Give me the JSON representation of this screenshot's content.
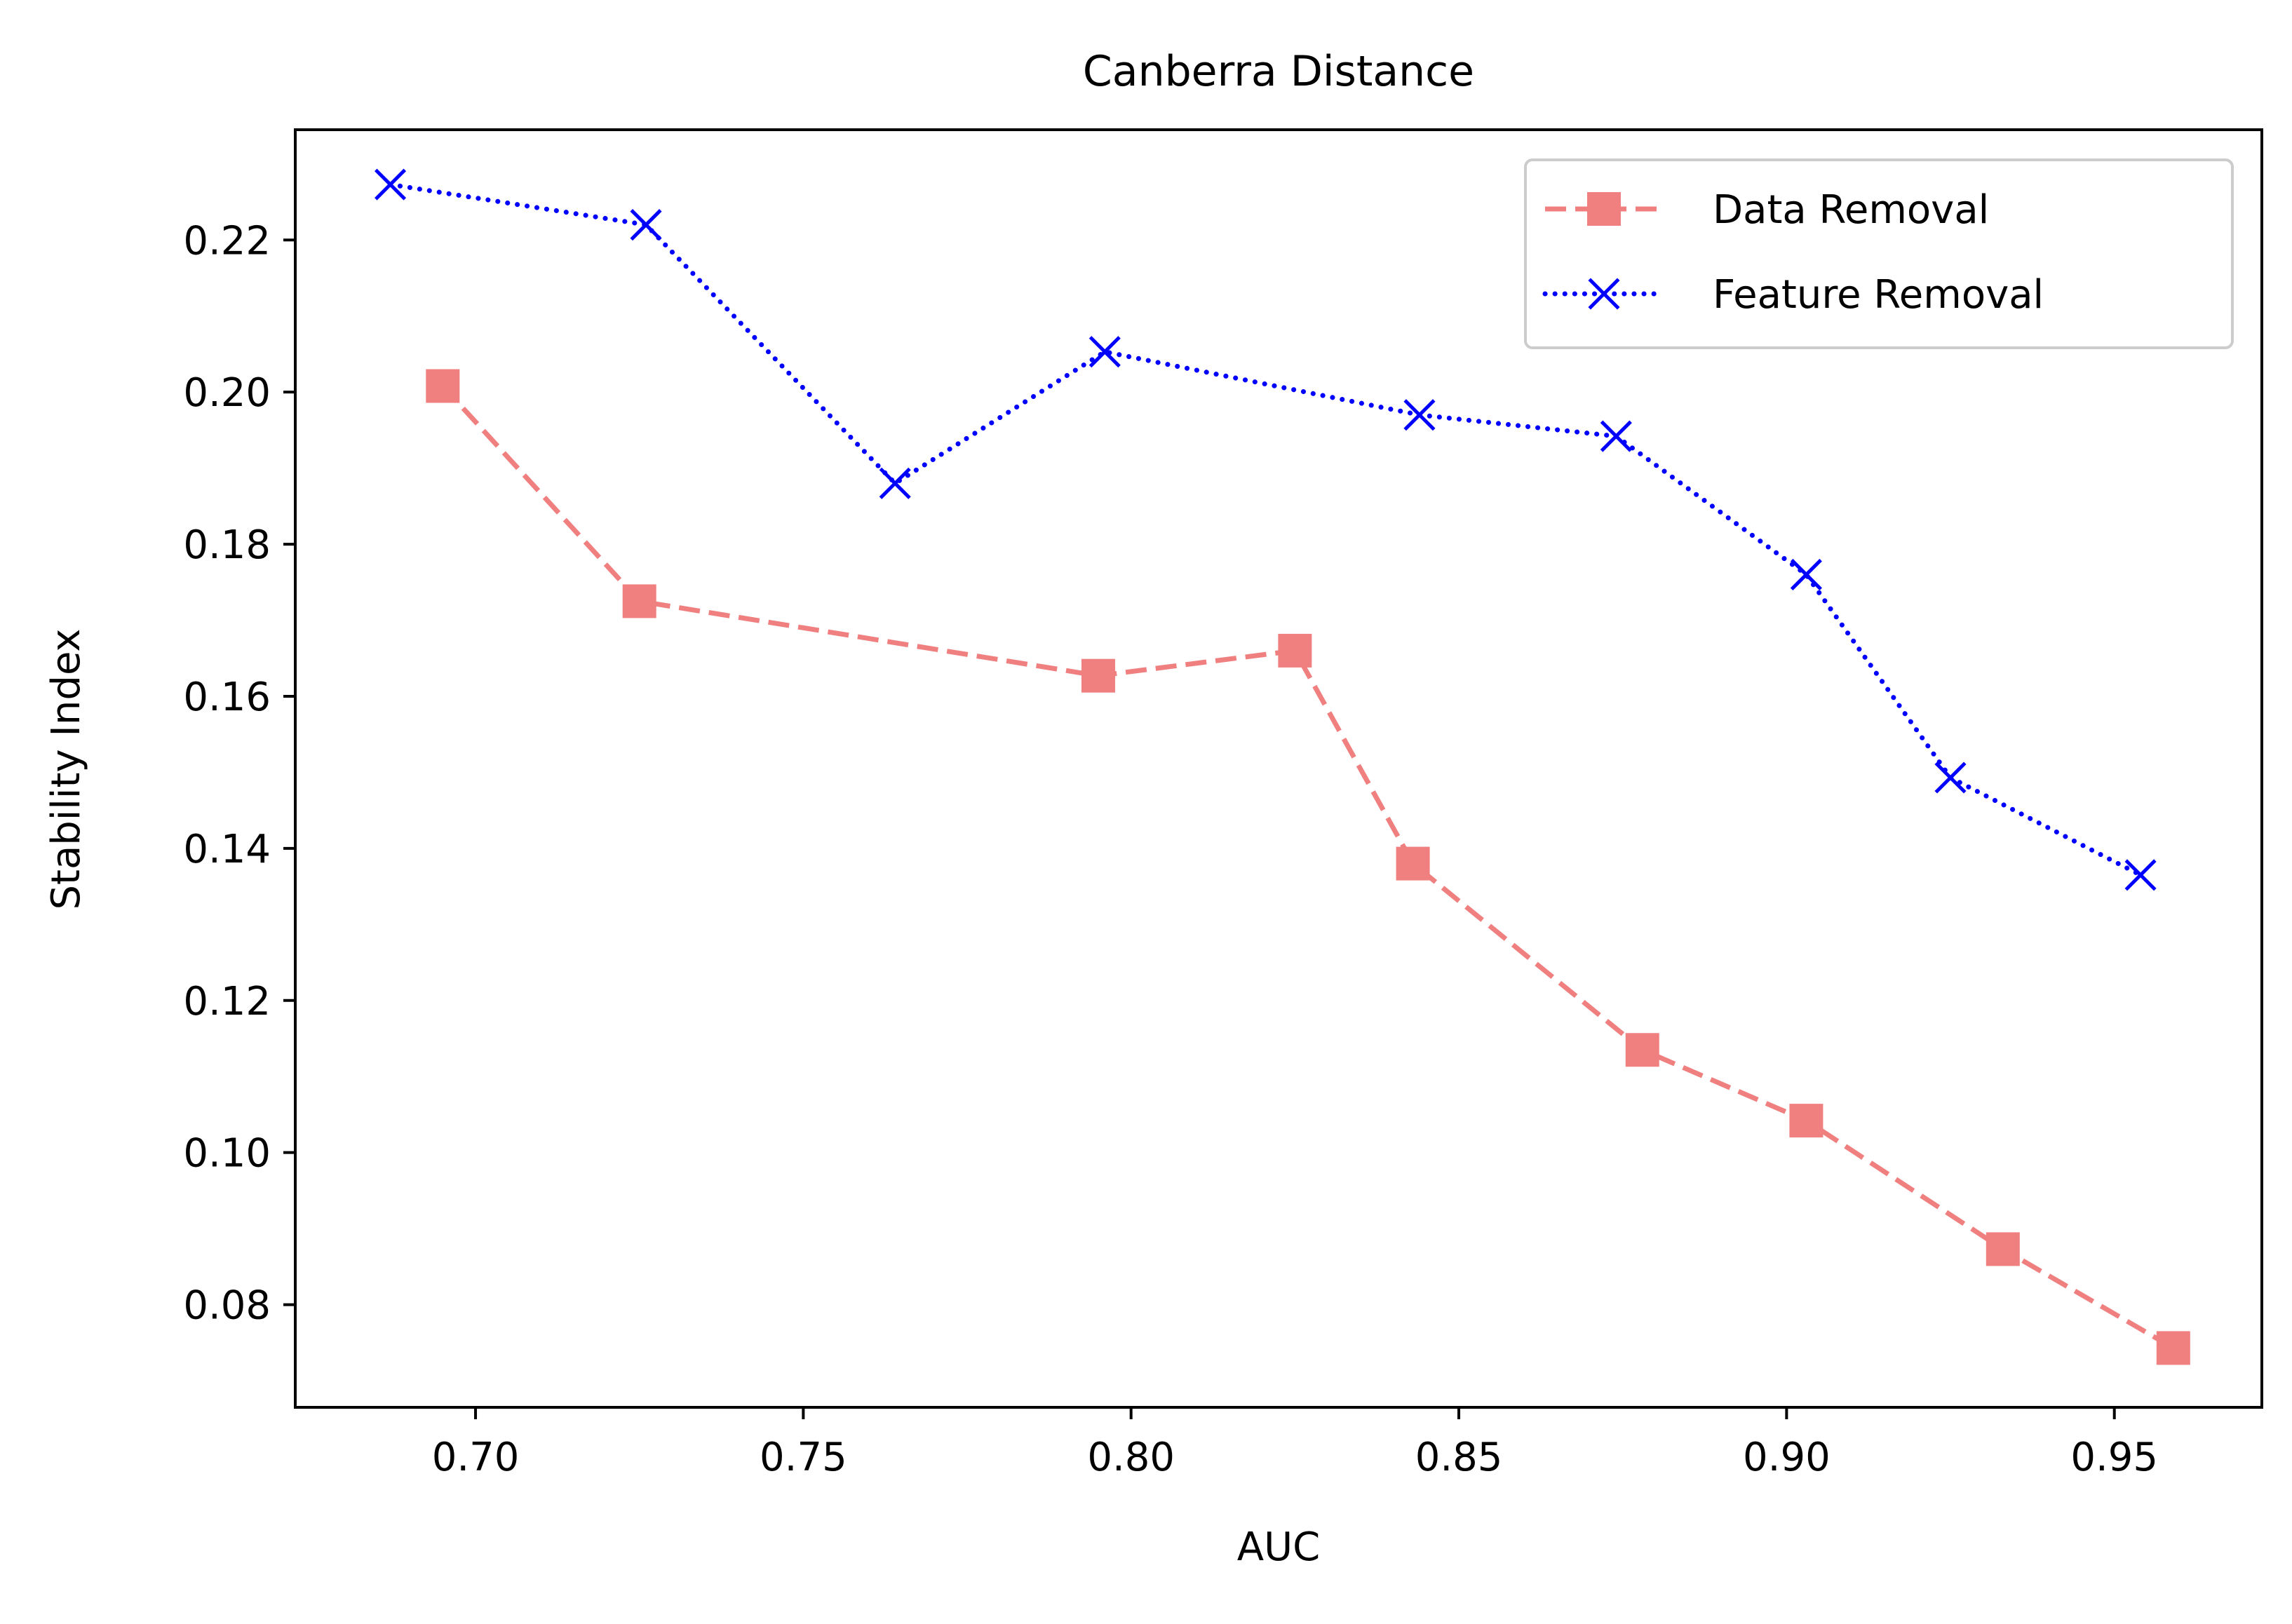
{
  "chart_data": {
    "type": "line",
    "title": "Canberra Distance",
    "xlabel": "AUC",
    "ylabel": "Stability Index",
    "xlim": [
      0.6725,
      0.9725
    ],
    "ylim": [
      0.0665,
      0.2345
    ],
    "x_ticks": [
      0.7,
      0.75,
      0.8,
      0.85,
      0.9,
      0.95
    ],
    "x_tick_labels": [
      "0.70",
      "0.75",
      "0.80",
      "0.85",
      "0.90",
      "0.95"
    ],
    "y_ticks": [
      0.08,
      0.1,
      0.12,
      0.14,
      0.16,
      0.18,
      0.2,
      0.22
    ],
    "y_tick_labels": [
      "0.08",
      "0.10",
      "0.12",
      "0.14",
      "0.16",
      "0.18",
      "0.20",
      "0.22"
    ],
    "grid": false,
    "legend_position": "top-right",
    "series": [
      {
        "name": "Data Removal",
        "color": "#f08080",
        "line_style": "dashed",
        "marker": "square",
        "x": [
          0.695,
          0.725,
          0.795,
          0.825,
          0.843,
          0.878,
          0.903,
          0.933,
          0.959
        ],
        "y": [
          0.2008,
          0.1725,
          0.1627,
          0.166,
          0.138,
          0.1135,
          0.1042,
          0.0873,
          0.0743
        ]
      },
      {
        "name": "Feature Removal",
        "color": "#0000ff",
        "line_style": "dotted",
        "marker": "x",
        "x": [
          0.687,
          0.726,
          0.764,
          0.796,
          0.844,
          0.874,
          0.903,
          0.925,
          0.954
        ],
        "y": [
          0.2273,
          0.222,
          0.188,
          0.2053,
          0.197,
          0.1942,
          0.176,
          0.1493,
          0.1365
        ]
      }
    ]
  }
}
